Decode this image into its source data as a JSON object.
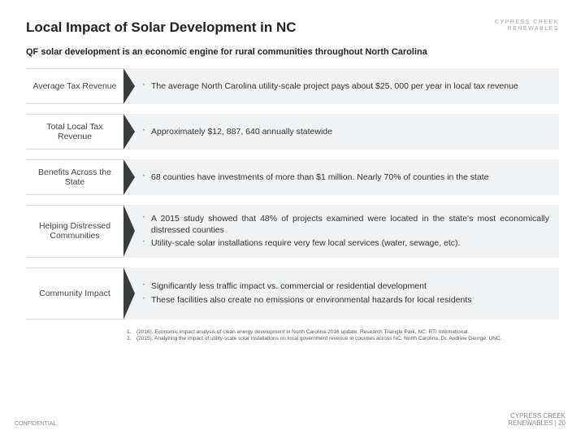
{
  "header": {
    "title": "Local Impact of Solar Development in NC",
    "logo_line1": "CYPRESS CREEK",
    "logo_line2": "RENEWABLES"
  },
  "subtitle": "QF solar development is an economic engine for rural communities throughout North Carolina",
  "rows": [
    {
      "label": "Average Tax Revenue",
      "bullets": [
        "The average North Carolina utility-scale project pays about $25, 000 per year in local tax revenue"
      ],
      "tall": false
    },
    {
      "label": "Total Local Tax Revenue",
      "bullets": [
        "Approximately $12, 887, 640 annually statewide"
      ],
      "tall": false
    },
    {
      "label": "Benefits Across the State",
      "bullets": [
        "68 counties have investments of more than $1 million. Nearly 70% of counties in the state"
      ],
      "tall": false,
      "justify": true
    },
    {
      "label": "Helping Distressed Communities",
      "bullets": [
        "A 2015 study showed that 48% of projects examined were located in the state's most economically distressed counties",
        "Utility-scale solar installations require very few local services (water, sewage, etc)."
      ],
      "tall": true,
      "justify": true
    },
    {
      "label": "Community Impact",
      "bullets": [
        "Significantly less traffic impact vs. commercial or residential development",
        "These facilities also create no emissions or environmental hazards for local residents"
      ],
      "tall": true
    }
  ],
  "footnotes": [
    {
      "num": "1.",
      "text": "(2016). Economic impact analysis of clean energy development in North Carolina-2016 update. Research Triangle Park, NC: RTI International."
    },
    {
      "num": "2.",
      "text": "(2015). Analyzing the impact of utility-scale solar installations on local government revenue in counties across NC. North Carolina. Dr. Andrew George. UNC."
    }
  ],
  "footer": {
    "confidential": "CONFIDENTIAL",
    "company_line1": "CYPRESS CREEK",
    "company_line2_prefix": "RENEWABLES  |  ",
    "page_number": "20"
  },
  "colors": {
    "row_body_bg": "#f1f2f3",
    "wedge": "#3a3d40",
    "label_border": "#d6d9dc"
  }
}
